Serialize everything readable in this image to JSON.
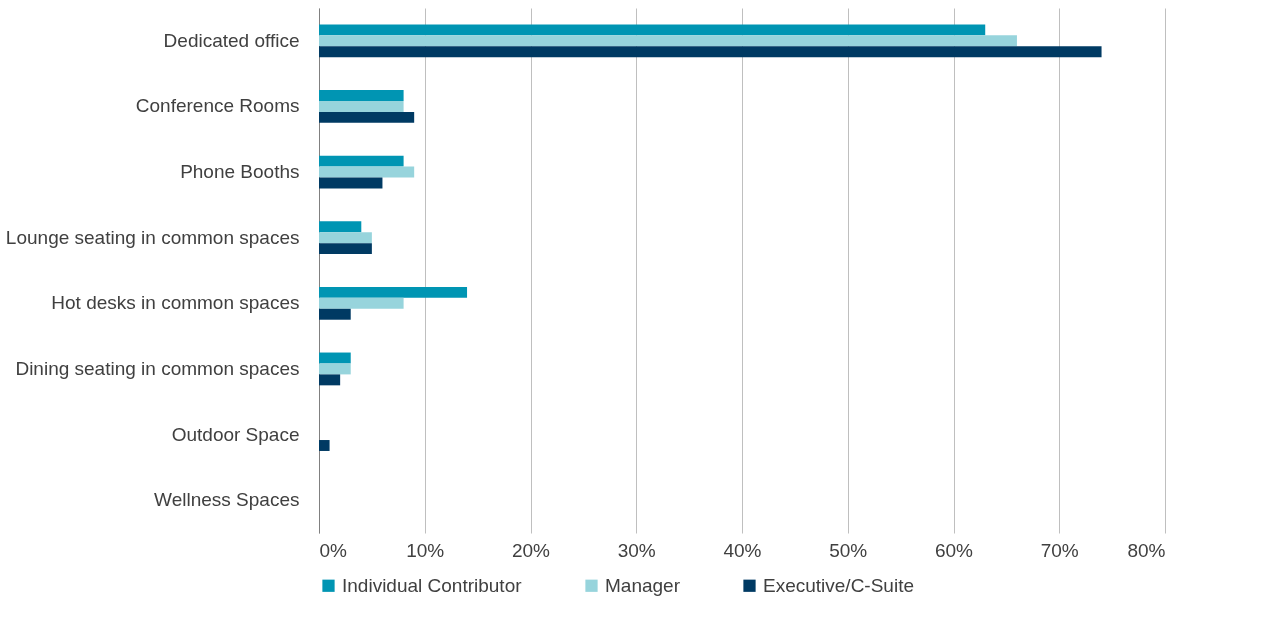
{
  "chart_data": {
    "type": "bar",
    "orientation": "horizontal",
    "categories": [
      "Dedicated office",
      "Conference Rooms",
      "Phone Booths",
      "Lounge seating in common spaces",
      "Hot desks in common spaces",
      "Dining seating in common spaces",
      "Outdoor Space",
      "Wellness Spaces"
    ],
    "series": [
      {
        "name": "Individual Contributor",
        "color": "#0095b3",
        "values": [
          63,
          8,
          8,
          4,
          14,
          3,
          0,
          0
        ]
      },
      {
        "name": "Manager",
        "color": "#97d4dc",
        "values": [
          66,
          8,
          9,
          5,
          8,
          3,
          0,
          0
        ]
      },
      {
        "name": "Executive/C-Suite",
        "color": "#003a63",
        "values": [
          74,
          9,
          6,
          5,
          3,
          2,
          1,
          0
        ]
      }
    ],
    "xlim": [
      0,
      80
    ],
    "xticks": [
      {
        "value": 0,
        "label": "0%"
      },
      {
        "value": 10,
        "label": "10%"
      },
      {
        "value": 20,
        "label": "20%"
      },
      {
        "value": 30,
        "label": "30%"
      },
      {
        "value": 40,
        "label": "40%"
      },
      {
        "value": 50,
        "label": "50%"
      },
      {
        "value": 60,
        "label": "60%"
      },
      {
        "value": 70,
        "label": "70%"
      },
      {
        "value": 80,
        "label": "80%"
      }
    ],
    "grid": "x",
    "legend": "bottom"
  }
}
